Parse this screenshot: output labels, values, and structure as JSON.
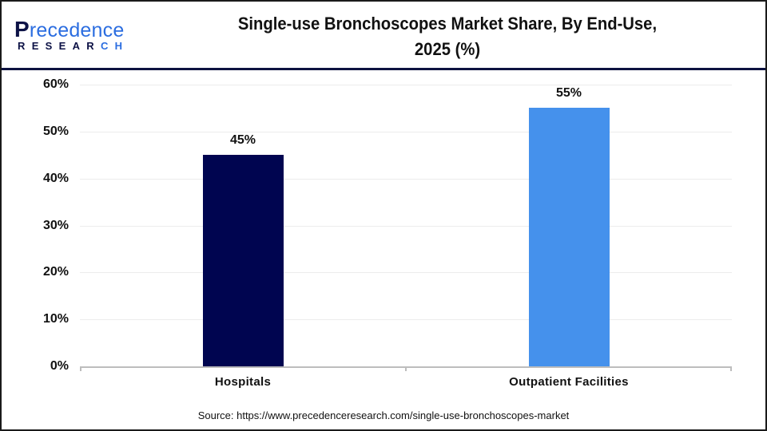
{
  "logo": {
    "top_initial": "P",
    "top_rest": "recedence",
    "bottom_main": "RESEAR",
    "bottom_accent": "CH",
    "colors": {
      "dark": "#0d1246",
      "accent": "#2b6de0"
    }
  },
  "header": {
    "title_line1": "Single-use Bronchoscopes Market Share, By End-Use,",
    "title_line2": "2025 (%)"
  },
  "chart_data": {
    "type": "bar",
    "title": "Single-use Bronchoscopes Market Share, By End-Use, 2025 (%)",
    "categories": [
      "Hospitals",
      "Outpatient Facilities"
    ],
    "values": [
      45,
      55
    ],
    "data_labels": [
      "45%",
      "55%"
    ],
    "colors": [
      "#000550",
      "#4591ec"
    ],
    "xlabel": "",
    "ylabel": "",
    "ylim": [
      0,
      60
    ],
    "yticks": [
      "0%",
      "10%",
      "20%",
      "30%",
      "40%",
      "50%",
      "60%"
    ],
    "grid": true,
    "legend": "none"
  },
  "footer": {
    "source": "Source: https://www.precedenceresearch.com/single-use-bronchoscopes-market"
  }
}
